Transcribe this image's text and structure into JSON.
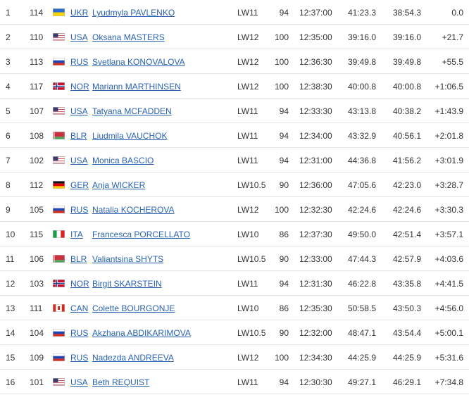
{
  "table": {
    "rows": [
      [
        1,
        114,
        "UKR",
        "Lyudmyla PAVLENKO",
        "LW11",
        94,
        "12:37:00",
        "41:23.3",
        "38:54.3",
        "0.0"
      ],
      [
        2,
        110,
        "USA",
        "Oksana MASTERS",
        "LW12",
        100,
        "12:35:00",
        "39:16.0",
        "39:16.0",
        "+21.7"
      ],
      [
        3,
        113,
        "RUS",
        "Svetlana KONOVALOVA",
        "LW12",
        100,
        "12:36:30",
        "39:49.8",
        "39:49.8",
        "+55.5"
      ],
      [
        4,
        117,
        "NOR",
        "Mariann MARTHINSEN",
        "LW12",
        100,
        "12:38:30",
        "40:00.8",
        "40:00.8",
        "+1:06.5"
      ],
      [
        5,
        107,
        "USA",
        "Tatyana MCFADDEN",
        "LW11",
        94,
        "12:33:30",
        "43:13.8",
        "40:38.2",
        "+1:43.9"
      ],
      [
        6,
        108,
        "BLR",
        "Liudmila VAUCHOK",
        "LW11",
        94,
        "12:34:00",
        "43:32.9",
        "40:56.1",
        "+2:01.8"
      ],
      [
        7,
        102,
        "USA",
        "Monica BASCIO",
        "LW11",
        94,
        "12:31:00",
        "44:36.8",
        "41:56.2",
        "+3:01.9"
      ],
      [
        8,
        112,
        "GER",
        "Anja WICKER",
        "LW10.5",
        90,
        "12:36:00",
        "47:05.6",
        "42:23.0",
        "+3:28.7"
      ],
      [
        9,
        105,
        "RUS",
        "Natalia KOCHEROVA",
        "LW12",
        100,
        "12:32:30",
        "42:24.6",
        "42:24.6",
        "+3:30.3"
      ],
      [
        10,
        115,
        "ITA",
        "Francesca PORCELLATO",
        "LW10",
        86,
        "12:37:30",
        "49:50.0",
        "42:51.4",
        "+3:57.1"
      ],
      [
        11,
        106,
        "BLR",
        "Valiantsina SHYTS",
        "LW10.5",
        90,
        "12:33:00",
        "47:44.3",
        "42:57.9",
        "+4:03.6"
      ],
      [
        12,
        103,
        "NOR",
        "Birgit SKARSTEIN",
        "LW11",
        94,
        "12:31:30",
        "46:22.8",
        "43:35.8",
        "+4:41.5"
      ],
      [
        13,
        111,
        "CAN",
        "Colette BOURGONJE",
        "LW10",
        86,
        "12:35:30",
        "50:58.5",
        "43:50.3",
        "+4:56.0"
      ],
      [
        14,
        104,
        "RUS",
        "Akzhana ABDIKARIMOVA",
        "LW10.5",
        90,
        "12:32:00",
        "48:47.1",
        "43:54.4",
        "+5:00.1"
      ],
      [
        15,
        109,
        "RUS",
        "Nadezda ANDREEVA",
        "LW12",
        100,
        "12:34:30",
        "44:25.9",
        "44:25.9",
        "+5:31.6"
      ],
      [
        16,
        101,
        "USA",
        "Beth REQUIST",
        "LW11",
        94,
        "12:30:30",
        "49:27.1",
        "46:29.1",
        "+7:34.8"
      ]
    ]
  }
}
